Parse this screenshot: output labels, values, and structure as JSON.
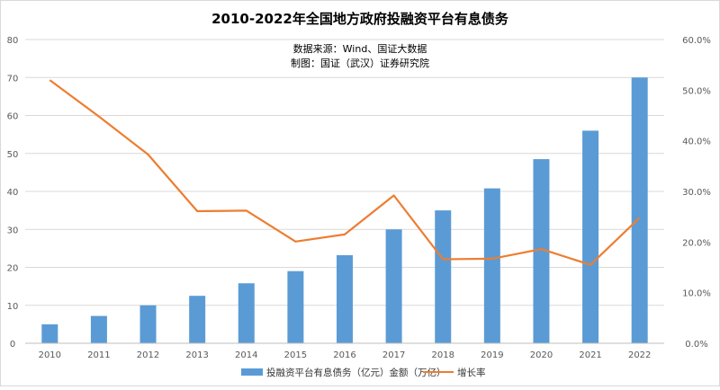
{
  "chart_data": {
    "type": "bar",
    "title": "2010-2022年全国地方政府投融资平台有息债务",
    "annotations": [
      "数据来源：Wind、国证大数据",
      "制图：国证（武汉）证券研究院"
    ],
    "categories": [
      "2010",
      "2011",
      "2012",
      "2013",
      "2014",
      "2015",
      "2016",
      "2017",
      "2018",
      "2019",
      "2020",
      "2021",
      "2022"
    ],
    "series": [
      {
        "name": "投融资平台有息债务（亿元）金额（万亿）",
        "type": "bar",
        "axis": "left",
        "color": "#5B9BD5",
        "values": [
          5.0,
          7.2,
          10.0,
          12.5,
          15.8,
          19.0,
          23.2,
          30.0,
          35.0,
          40.8,
          48.5,
          56.0,
          70.0
        ]
      },
      {
        "name": "增长率",
        "type": "line",
        "axis": "right",
        "color": "#ED7D31",
        "values": [
          0.52,
          0.448,
          0.373,
          0.261,
          0.262,
          0.201,
          0.215,
          0.292,
          0.166,
          0.167,
          0.186,
          0.155,
          0.248
        ]
      }
    ],
    "y_left": {
      "min": 0,
      "max": 80,
      "ticks": [
        "0",
        "10",
        "20",
        "30",
        "40",
        "50",
        "60",
        "70",
        "80"
      ]
    },
    "y_right": {
      "min": 0,
      "max": 0.6,
      "ticks": [
        "0.0%",
        "10.0%",
        "20.0%",
        "30.0%",
        "40.0%",
        "50.0%",
        "60.0%"
      ]
    },
    "grid": true,
    "legend_position": "bottom"
  }
}
